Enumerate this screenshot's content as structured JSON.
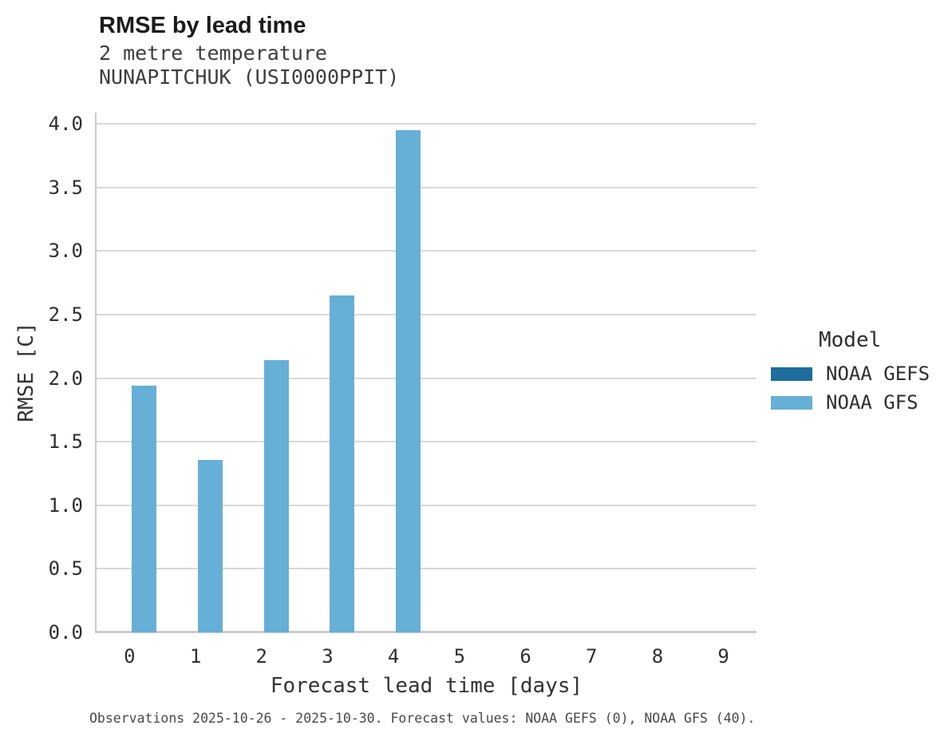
{
  "chart_data": {
    "type": "bar",
    "title": "RMSE by lead time",
    "subtitle": [
      "2 metre temperature",
      "NUNAPITCHUK (USI0000PPIT)"
    ],
    "xlabel": "Forecast lead time [days]",
    "ylabel": "RMSE [C]",
    "categories": [
      "0",
      "1",
      "2",
      "3",
      "4",
      "5",
      "6",
      "7",
      "8",
      "9"
    ],
    "series": [
      {
        "name": "NOAA GEFS",
        "color": "#1e6e9e",
        "values": [
          null,
          null,
          null,
          null,
          null,
          null,
          null,
          null,
          null,
          null
        ]
      },
      {
        "name": "NOAA GFS",
        "color": "#66afd7",
        "values": [
          1.94,
          1.36,
          2.14,
          2.65,
          3.95,
          null,
          null,
          null,
          null,
          null
        ]
      }
    ],
    "yticks": [
      0.0,
      0.5,
      1.0,
      1.5,
      2.0,
      2.5,
      3.0,
      3.5,
      4.0
    ],
    "ylim": [
      0,
      4.09
    ],
    "grid": true,
    "legend": {
      "title": "Model",
      "position": "right"
    }
  },
  "footer": {
    "note": "Observations 2025-10-26 - 2025-10-30. Forecast values: NOAA GEFS (0), NOAA GFS (40)."
  },
  "colors": {
    "noaa_gefs": "#1e6e9e",
    "noaa_gfs": "#66afd7",
    "gridline": "#d9d9d9",
    "spine": "#cccccc"
  }
}
